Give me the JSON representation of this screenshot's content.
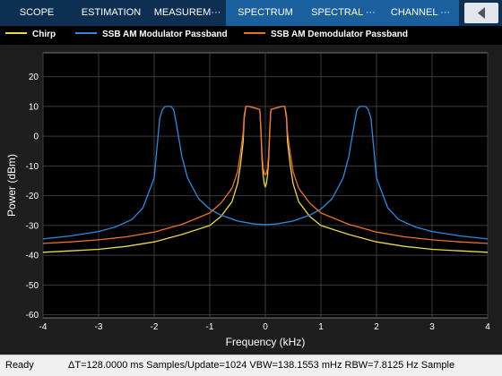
{
  "toolstrip": {
    "tabs": [
      {
        "label": "SCOPE",
        "active": false
      },
      {
        "label": "ESTIMATION",
        "active": false
      },
      {
        "label": "MEASUREM···",
        "active": false
      },
      {
        "label": "SPECTRUM",
        "active": true
      },
      {
        "label": "SPECTRAL ···",
        "active": true
      },
      {
        "label": "CHANNEL ···",
        "active": true
      }
    ],
    "collapse_icon": "chevron-left-icon"
  },
  "status": {
    "ready": "Ready",
    "info": "ΔT=128.0000 ms  Samples/Update=1024  VBW=138.1553 mHz  RBW=7.8125 Hz  Sample"
  },
  "colors": {
    "background": "#1e1e1e",
    "axes_background": "#000000",
    "grid": "#3c3c3c",
    "text": "#ffffff",
    "toolstrip": "#0d3052",
    "tab_active": "#1a5f9e"
  },
  "chart_data": {
    "type": "line",
    "title": "",
    "xlabel": "Frequency (kHz)",
    "ylabel": "Power (dBm)",
    "xlim": [
      -4,
      4
    ],
    "ylim": [
      -61,
      28
    ],
    "xticks": [
      -4,
      -3,
      -2,
      -1,
      0,
      1,
      2,
      3,
      4
    ],
    "yticks": [
      20,
      10,
      0,
      -10,
      -20,
      -30,
      -40,
      -50,
      -60
    ],
    "grid": true,
    "legend_position": "top",
    "series": [
      {
        "name": "Chirp",
        "color": "#edd64a",
        "x": [
          -4,
          -3.5,
          -3,
          -2.5,
          -2,
          -1.5,
          -1,
          -0.8,
          -0.6,
          -0.5,
          -0.45,
          -0.4,
          -0.38,
          -0.35,
          -0.3,
          -0.2,
          -0.1,
          -0.08,
          -0.06,
          -0.04,
          -0.02,
          0,
          0.02,
          0.04,
          0.06,
          0.08,
          0.1,
          0.2,
          0.3,
          0.35,
          0.38,
          0.4,
          0.45,
          0.5,
          0.6,
          0.8,
          1,
          1.5,
          2,
          2.5,
          3,
          3.5,
          4
        ],
        "y": [
          -39,
          -38.5,
          -38,
          -37,
          -35.5,
          -33,
          -30,
          -27,
          -22,
          -16,
          -10,
          -2,
          6,
          10,
          10,
          9.5,
          9,
          2,
          -8,
          -13,
          -16,
          -17,
          -16,
          -13,
          -8,
          2,
          9,
          9.5,
          10,
          10,
          6,
          -2,
          -10,
          -16,
          -22,
          -27,
          -30,
          -33,
          -35.5,
          -37,
          -38,
          -38.5,
          -39
        ]
      },
      {
        "name": "SSB AM Modulator Passband",
        "color": "#2b8be2",
        "x": [
          -4,
          -3.5,
          -3,
          -2.7,
          -2.4,
          -2.2,
          -2.0,
          -1.95,
          -1.9,
          -1.85,
          -1.8,
          -1.7,
          -1.65,
          -1.6,
          -1.5,
          -1.4,
          -1.2,
          -1,
          -0.8,
          -0.5,
          -0.2,
          0,
          0.2,
          0.5,
          0.8,
          1,
          1.2,
          1.4,
          1.5,
          1.6,
          1.65,
          1.7,
          1.8,
          1.85,
          1.9,
          1.95,
          2.0,
          2.2,
          2.4,
          2.7,
          3,
          3.5,
          4
        ],
        "y": [
          -34.5,
          -33.5,
          -32,
          -30.5,
          -28,
          -24,
          -14,
          -4,
          6,
          9,
          10,
          10,
          9,
          4,
          -7,
          -14,
          -21,
          -24.5,
          -26.5,
          -28.5,
          -29.5,
          -29.7,
          -29.5,
          -28.5,
          -26.5,
          -24.5,
          -21,
          -14,
          -7,
          4,
          9,
          10,
          10,
          9,
          6,
          -4,
          -14,
          -24,
          -28,
          -30.5,
          -32,
          -33.5,
          -34.5
        ]
      },
      {
        "name": "SSB AM Demodulator Passband",
        "color": "#ee6f2a",
        "x": [
          -4,
          -3.5,
          -3,
          -2.5,
          -2,
          -1.5,
          -1,
          -0.8,
          -0.6,
          -0.5,
          -0.45,
          -0.4,
          -0.38,
          -0.35,
          -0.3,
          -0.2,
          -0.1,
          -0.08,
          -0.06,
          -0.04,
          -0.02,
          0,
          0.02,
          0.04,
          0.06,
          0.08,
          0.1,
          0.2,
          0.3,
          0.35,
          0.38,
          0.4,
          0.45,
          0.5,
          0.6,
          0.8,
          1,
          1.5,
          2,
          2.5,
          3,
          3.5,
          4
        ],
        "y": [
          -36,
          -35.5,
          -34.8,
          -33.8,
          -32.2,
          -29.6,
          -25.8,
          -22.5,
          -17.5,
          -12,
          -6,
          1,
          7,
          10,
          10,
          9.5,
          9,
          3,
          -6,
          -10.5,
          -12.5,
          -13,
          -12.5,
          -10.5,
          -6,
          3,
          9,
          9.5,
          10,
          10,
          7,
          1,
          -6,
          -12,
          -17.5,
          -22.5,
          -25.8,
          -29.6,
          -32.2,
          -33.8,
          -34.8,
          -35.5,
          -36
        ]
      }
    ]
  }
}
